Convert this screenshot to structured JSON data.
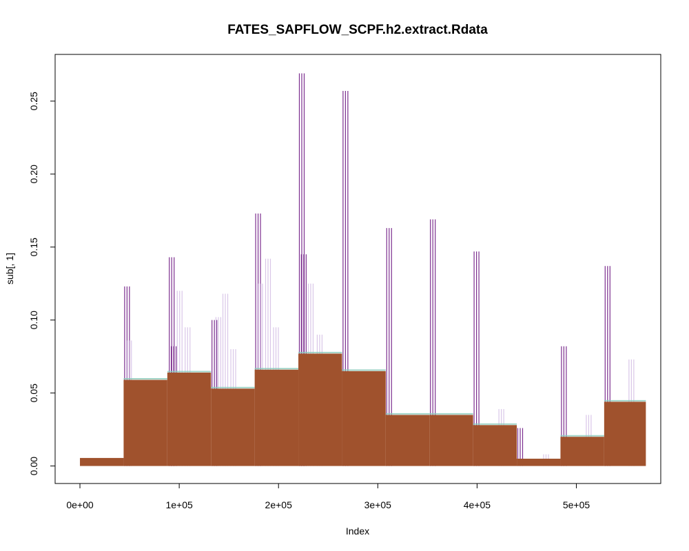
{
  "chart_data": {
    "type": "bar",
    "title": "FATES_SAPFLOW_SCPF.h2.extract.Rdata",
    "xlabel": "Index",
    "ylabel": "sub[, 1]",
    "xlim": [
      -25000,
      585000
    ],
    "ylim": [
      -0.012,
      0.282
    ],
    "x_ticks": [
      0,
      100000,
      200000,
      300000,
      400000,
      500000
    ],
    "x_tick_labels": [
      "0e+00",
      "1e+05",
      "2e+05",
      "3e+05",
      "4e+05",
      "5e+05"
    ],
    "y_ticks": [
      0.0,
      0.05,
      0.1,
      0.15,
      0.2,
      0.25
    ],
    "y_tick_labels": [
      "0.00",
      "0.05",
      "0.10",
      "0.15",
      "0.20",
      "0.25"
    ],
    "grid": false,
    "colors": {
      "main_fill": "#a0522d",
      "spike_dark": "#7b2d8e",
      "spike_light": "#d9c6e8",
      "band_top": "#88c9b8",
      "axis": "#000000"
    },
    "series": [
      {
        "segments": [
          {
            "x_start": 0,
            "x_end": 44000,
            "level": 0.0055
          },
          {
            "x_start": 44000,
            "x_end": 88000,
            "level": 0.059
          },
          {
            "x_start": 88000,
            "x_end": 132000,
            "level": 0.064
          },
          {
            "x_start": 132000,
            "x_end": 176000,
            "level": 0.053
          },
          {
            "x_start": 176000,
            "x_end": 220000,
            "level": 0.066
          },
          {
            "x_start": 220000,
            "x_end": 264000,
            "level": 0.077
          },
          {
            "x_start": 264000,
            "x_end": 308000,
            "level": 0.065
          },
          {
            "x_start": 308000,
            "x_end": 352000,
            "level": 0.035
          },
          {
            "x_start": 352000,
            "x_end": 396000,
            "level": 0.035
          },
          {
            "x_start": 396000,
            "x_end": 440000,
            "level": 0.028
          },
          {
            "x_start": 440000,
            "x_end": 484000,
            "level": 0.005
          },
          {
            "x_start": 484000,
            "x_end": 528000,
            "level": 0.02
          },
          {
            "x_start": 528000,
            "x_end": 570000,
            "level": 0.044
          }
        ]
      }
    ],
    "spikes": [
      {
        "x": 45000,
        "value": 0.123,
        "shade": "dark"
      },
      {
        "x": 47000,
        "value": 0.086,
        "shade": "light"
      },
      {
        "x": 90000,
        "value": 0.143,
        "shade": "dark"
      },
      {
        "x": 92000,
        "value": 0.082,
        "shade": "dark"
      },
      {
        "x": 98000,
        "value": 0.12,
        "shade": "light"
      },
      {
        "x": 106000,
        "value": 0.095,
        "shade": "light"
      },
      {
        "x": 133000,
        "value": 0.1,
        "shade": "dark"
      },
      {
        "x": 137000,
        "value": 0.102,
        "shade": "light"
      },
      {
        "x": 144000,
        "value": 0.118,
        "shade": "light"
      },
      {
        "x": 152000,
        "value": 0.08,
        "shade": "light"
      },
      {
        "x": 177000,
        "value": 0.173,
        "shade": "dark"
      },
      {
        "x": 179000,
        "value": 0.125,
        "shade": "light"
      },
      {
        "x": 187000,
        "value": 0.142,
        "shade": "light"
      },
      {
        "x": 195000,
        "value": 0.095,
        "shade": "light"
      },
      {
        "x": 221000,
        "value": 0.269,
        "shade": "dark"
      },
      {
        "x": 223000,
        "value": 0.145,
        "shade": "dark"
      },
      {
        "x": 230000,
        "value": 0.125,
        "shade": "light"
      },
      {
        "x": 239000,
        "value": 0.09,
        "shade": "light"
      },
      {
        "x": 265000,
        "value": 0.257,
        "shade": "dark"
      },
      {
        "x": 309000,
        "value": 0.163,
        "shade": "dark"
      },
      {
        "x": 353000,
        "value": 0.169,
        "shade": "dark"
      },
      {
        "x": 397000,
        "value": 0.147,
        "shade": "dark"
      },
      {
        "x": 422000,
        "value": 0.039,
        "shade": "light"
      },
      {
        "x": 441000,
        "value": 0.026,
        "shade": "dark"
      },
      {
        "x": 467000,
        "value": 0.008,
        "shade": "light"
      },
      {
        "x": 485000,
        "value": 0.082,
        "shade": "dark"
      },
      {
        "x": 510000,
        "value": 0.035,
        "shade": "light"
      },
      {
        "x": 529000,
        "value": 0.137,
        "shade": "dark"
      },
      {
        "x": 553000,
        "value": 0.073,
        "shade": "light"
      }
    ]
  }
}
